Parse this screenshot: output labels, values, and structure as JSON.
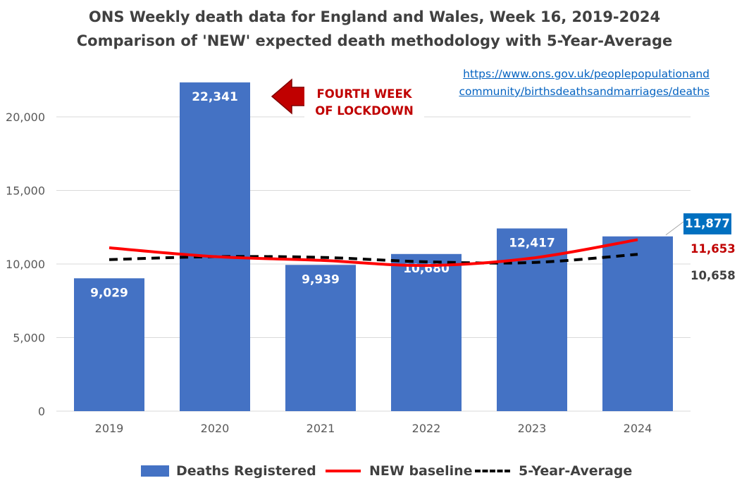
{
  "chart_data": {
    "type": "bar",
    "title": "ONS Weekly death data for England and Wales, Week 16, 2019-2024",
    "subtitle": "Comparison of 'NEW' expected death methodology with 5-Year-Average",
    "categories": [
      "2019",
      "2020",
      "2021",
      "2022",
      "2023",
      "2024"
    ],
    "series": [
      {
        "name": "Deaths Registered",
        "type": "bar",
        "color": "#4472c4",
        "values": [
          9029,
          22341,
          9939,
          10680,
          12417,
          11877
        ],
        "labels": [
          "9,029",
          "22,341",
          "9,939",
          "10,680",
          "12,417",
          "11,877"
        ]
      },
      {
        "name": "NEW baseline",
        "type": "line",
        "color": "#ff0000",
        "values": [
          11100,
          10500,
          10250,
          9900,
          10400,
          11653
        ]
      },
      {
        "name": "5-Year-Average",
        "type": "line",
        "style": "dashed",
        "color": "#000000",
        "values": [
          10300,
          10500,
          10450,
          10150,
          10100,
          10658
        ]
      }
    ],
    "ylim": [
      0,
      22500
    ],
    "yticks": [
      0,
      5000,
      10000,
      15000,
      20000
    ],
    "ytick_labels": [
      "0",
      "5,000",
      "10,000",
      "15,000",
      "20,000"
    ],
    "grid": true,
    "legend_position": "bottom",
    "annotation": {
      "line1": "FOURTH WEEK",
      "line2": "OF LOCKDOWN",
      "color": "#c00000"
    },
    "source_link": {
      "line1": "https://www.ons.gov.uk/peoplepopulationand",
      "line2": "community/birthsdeathsandmarriages/deaths"
    },
    "end_labels": {
      "bar": "11,877",
      "new_baseline": "11,653",
      "five_year_avg": "10,658"
    }
  }
}
